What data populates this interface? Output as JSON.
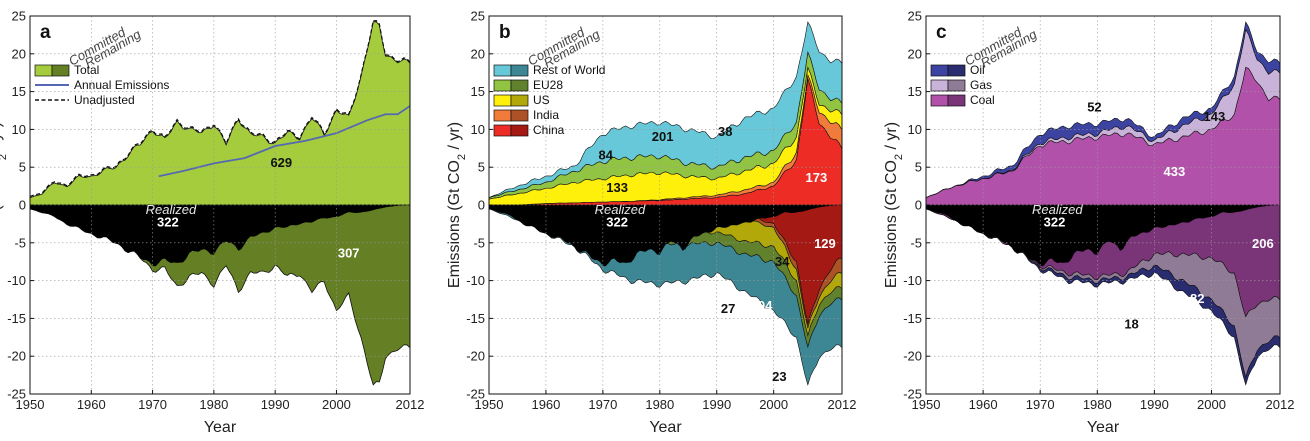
{
  "chart_data": {
    "type": "area",
    "shared": {
      "xlabel": "Year",
      "ylabel_text": "Emissions (Gt CO",
      "ylabel_sub": "2",
      "ylabel_suffix": " / yr)",
      "xlim": [
        1950,
        2012
      ],
      "ylim": [
        -25,
        25
      ],
      "xticks": [
        "1950",
        "1960",
        "1970",
        "1980",
        "1990",
        "2000",
        "2012"
      ],
      "yticks": [
        "25",
        "20",
        "15",
        "10",
        "5",
        "0",
        "-5",
        "-10",
        "-15",
        "-20",
        "-25"
      ],
      "committed_label": "Committed",
      "remaining_label": "Remaining",
      "realized_label": "Realized",
      "grid": true
    },
    "panels": [
      {
        "letter": "a",
        "legend": [
          {
            "name": "Total",
            "color_light": "#a4cc3c",
            "color_dark": "#647f24"
          },
          {
            "name": "Annual Emissions",
            "line": "#5668b3"
          },
          {
            "name": "Unadjusted",
            "dashed": "#111111"
          }
        ],
        "series": [
          {
            "name": "Total",
            "color": "#a4cc3c",
            "dark": "#647f24"
          }
        ],
        "committed_total": [
          [
            1950,
            1.0
          ],
          [
            1952,
            1.5
          ],
          [
            1954,
            3.0
          ],
          [
            1956,
            2.5
          ],
          [
            1958,
            3.7
          ],
          [
            1960,
            3.8
          ],
          [
            1962,
            4.5
          ],
          [
            1964,
            5.0
          ],
          [
            1966,
            6.7
          ],
          [
            1968,
            8.0
          ],
          [
            1970,
            10.0
          ],
          [
            1972,
            8.6
          ],
          [
            1974,
            11.0
          ],
          [
            1976,
            10.0
          ],
          [
            1978,
            9.5
          ],
          [
            1980,
            10.8
          ],
          [
            1982,
            8.0
          ],
          [
            1984,
            11.5
          ],
          [
            1986,
            9.3
          ],
          [
            1988,
            9.0
          ],
          [
            1990,
            8.2
          ],
          [
            1992,
            9.5
          ],
          [
            1994,
            9.0
          ],
          [
            1996,
            11.5
          ],
          [
            1998,
            9.4
          ],
          [
            2000,
            12.5
          ],
          [
            2002,
            11.5
          ],
          [
            2004,
            17.0
          ],
          [
            2006,
            24.0
          ],
          [
            2007,
            23.6
          ],
          [
            2008,
            20.0
          ],
          [
            2010,
            19.0
          ],
          [
            2012,
            18.8
          ]
        ],
        "annual_emissions": [
          [
            1971,
            3.8
          ],
          [
            1975,
            4.5
          ],
          [
            1980,
            5.5
          ],
          [
            1985,
            6.2
          ],
          [
            1990,
            7.8
          ],
          [
            1995,
            8.5
          ],
          [
            2000,
            9.5
          ],
          [
            2005,
            11.2
          ],
          [
            2008,
            12.0
          ],
          [
            2010,
            12.0
          ],
          [
            2012,
            13.1
          ]
        ],
        "remaining_total": [
          [
            1950,
            -0.5
          ],
          [
            1954,
            -1.5
          ],
          [
            1956,
            -2.5
          ],
          [
            1960,
            -3.8
          ],
          [
            1964,
            -5.0
          ],
          [
            1966,
            -6.0
          ],
          [
            1968,
            -7.0
          ],
          [
            1970,
            -8.5
          ],
          [
            1972,
            -8.5
          ],
          [
            1974,
            -10.8
          ],
          [
            1976,
            -9.5
          ],
          [
            1978,
            -9.0
          ],
          [
            1980,
            -10.5
          ],
          [
            1982,
            -8.0
          ],
          [
            1984,
            -11.3
          ],
          [
            1986,
            -9.0
          ],
          [
            1988,
            -9.0
          ],
          [
            1990,
            -8.0
          ],
          [
            1992,
            -9.5
          ],
          [
            1994,
            -9.0
          ],
          [
            1996,
            -11.5
          ],
          [
            1998,
            -10.0
          ],
          [
            2000,
            -14.0
          ],
          [
            2002,
            -12.0
          ],
          [
            2004,
            -17.5
          ],
          [
            2006,
            -24.0
          ],
          [
            2007,
            -23.6
          ],
          [
            2008,
            -20.0
          ],
          [
            2010,
            -19.0
          ],
          [
            2012,
            -18.8
          ]
        ],
        "realized_boundary": [
          [
            1950,
            -0.5
          ],
          [
            1954,
            -1.5
          ],
          [
            1956,
            -2.5
          ],
          [
            1960,
            -3.8
          ],
          [
            1964,
            -5.0
          ],
          [
            1966,
            -6.0
          ],
          [
            1968,
            -7.0
          ],
          [
            1970,
            -7.8
          ],
          [
            1972,
            -7.4
          ],
          [
            1974,
            -7.8
          ],
          [
            1976,
            -6.5
          ],
          [
            1978,
            -6.0
          ],
          [
            1980,
            -6.2
          ],
          [
            1982,
            -4.8
          ],
          [
            1984,
            -5.8
          ],
          [
            1986,
            -4.3
          ],
          [
            1988,
            -3.8
          ],
          [
            1990,
            -3.0
          ],
          [
            1992,
            -3.0
          ],
          [
            1994,
            -2.4
          ],
          [
            1996,
            -2.3
          ],
          [
            1998,
            -1.7
          ],
          [
            2000,
            -1.6
          ],
          [
            2002,
            -1.0
          ],
          [
            2004,
            -1.0
          ],
          [
            2006,
            -0.7
          ],
          [
            2008,
            -0.3
          ],
          [
            2010,
            -0.1
          ],
          [
            2012,
            0.0
          ]
        ],
        "labels": [
          {
            "text": "629",
            "x": 1991,
            "y": 5.7,
            "color": "#111111"
          },
          {
            "text": "322",
            "x": 1972.5,
            "y": -2.2,
            "color": "#ffffff"
          },
          {
            "text": "307",
            "x": 2002,
            "y": -6.3,
            "color": "#ffffff"
          }
        ]
      },
      {
        "letter": "b",
        "legend": [
          {
            "name": "Rest of World",
            "color_light": "#66c8d8",
            "color_dark": "#3d8794"
          },
          {
            "name": "EU28",
            "color_light": "#92c444",
            "color_dark": "#61812d"
          },
          {
            "name": "US",
            "color_light": "#fff00c",
            "color_dark": "#b3a80a"
          },
          {
            "name": "India",
            "color_light": "#f07b3a",
            "color_dark": "#ad5226"
          },
          {
            "name": "China",
            "color_light": "#ec2c25",
            "color_dark": "#a41914"
          }
        ],
        "series": [
          {
            "name": "China",
            "color": "#ec2c25",
            "dark": "#a41914"
          },
          {
            "name": "India",
            "color": "#f07b3a",
            "dark": "#ad5226"
          },
          {
            "name": "US",
            "color": "#fff00c",
            "dark": "#b3a80a"
          },
          {
            "name": "EU28",
            "color": "#92c444",
            "dark": "#61812d"
          },
          {
            "name": "Rest of World",
            "color": "#66c8d8",
            "dark": "#3d8794"
          }
        ],
        "committed_cumulative": {
          "x": [
            1950,
            1955,
            1960,
            1965,
            1970,
            1975,
            1980,
            1985,
            1990,
            1995,
            2000,
            2004,
            2006,
            2008,
            2010,
            2012
          ],
          "China": [
            0.0,
            0.0,
            0.2,
            0.3,
            0.4,
            0.5,
            0.6,
            0.8,
            1.0,
            1.5,
            2.5,
            6.0,
            16.5,
            11.0,
            9.0,
            7.5
          ],
          "India": [
            0.0,
            0.0,
            0.2,
            0.3,
            0.4,
            0.5,
            0.7,
            1.0,
            1.3,
            2.0,
            3.0,
            7.0,
            17.0,
            12.5,
            11.0,
            10.0
          ],
          "US": [
            0.8,
            1.5,
            2.2,
            3.0,
            3.5,
            4.0,
            4.3,
            3.8,
            3.5,
            4.5,
            5.5,
            9.0,
            18.0,
            13.5,
            12.5,
            12.0
          ],
          "EU28": [
            1.0,
            2.0,
            3.0,
            4.5,
            5.8,
            6.3,
            6.5,
            5.5,
            5.0,
            6.3,
            7.2,
            11.0,
            20.0,
            15.5,
            14.0,
            13.5
          ],
          "Rest of World": [
            1.0,
            2.5,
            3.8,
            5.2,
            9.5,
            10.5,
            11.0,
            10.0,
            9.0,
            11.5,
            12.8,
            17.0,
            24.0,
            20.5,
            19.0,
            18.8
          ]
        },
        "remaining_cumulative": {
          "x": [
            1950,
            1955,
            1960,
            1965,
            1970,
            1975,
            1980,
            1985,
            1990,
            1995,
            2000,
            2004,
            2006,
            2008,
            2010,
            2012
          ],
          "China": [
            0.0,
            0.0,
            -0.1,
            -0.2,
            -0.3,
            -0.4,
            -0.5,
            -0.6,
            -0.8,
            -1.3,
            -2.5,
            -7.5,
            -16.0,
            -11.0,
            -8.5,
            -7.0
          ],
          "India": [
            0.0,
            0.0,
            -0.1,
            -0.2,
            -0.3,
            -0.5,
            -0.6,
            -0.8,
            -1.1,
            -1.8,
            -3.0,
            -8.5,
            -16.5,
            -12.0,
            -10.0,
            -9.0
          ],
          "US": [
            -0.3,
            -0.8,
            -1.5,
            -2.2,
            -2.8,
            -3.2,
            -3.6,
            -3.6,
            -3.6,
            -4.8,
            -5.5,
            -10.0,
            -17.5,
            -13.0,
            -11.5,
            -11.0
          ],
          "EU28": [
            -0.4,
            -1.2,
            -2.2,
            -3.2,
            -4.2,
            -4.8,
            -5.3,
            -5.2,
            -5.0,
            -6.5,
            -7.5,
            -12.0,
            -19.0,
            -14.5,
            -13.0,
            -12.5
          ],
          "Rest of World": [
            -0.5,
            -2.0,
            -3.8,
            -5.5,
            -8.5,
            -10.0,
            -10.5,
            -10.0,
            -9.0,
            -11.5,
            -14.0,
            -17.5,
            -24.0,
            -20.0,
            -19.0,
            -18.8
          ]
        },
        "labels": [
          {
            "text": "38",
            "x": 1991.5,
            "y": 9.8,
            "color": "#111111"
          },
          {
            "text": "84",
            "x": 1970.5,
            "y": 6.7,
            "color": "#111111"
          },
          {
            "text": "201",
            "x": 1980.5,
            "y": 9.1,
            "color": "#111111"
          },
          {
            "text": "133",
            "x": 1972.5,
            "y": 2.4,
            "color": "#111111"
          },
          {
            "text": "173",
            "x": 2007.5,
            "y": 3.7,
            "color": "#ffffff"
          },
          {
            "text": "322",
            "x": 1972.5,
            "y": -2.2,
            "color": "#ffffff"
          },
          {
            "text": "129",
            "x": 2009,
            "y": -5.0,
            "color": "#ffffff"
          },
          {
            "text": "34",
            "x": 2001.5,
            "y": -7.4,
            "color": "#111111"
          },
          {
            "text": "27",
            "x": 1992,
            "y": -13.6,
            "color": "#111111"
          },
          {
            "text": "94",
            "x": 1998.5,
            "y": -13.2,
            "color": "#ffffff"
          },
          {
            "text": "23",
            "x": 2001,
            "y": -22.6,
            "color": "#111111"
          }
        ]
      },
      {
        "letter": "c",
        "legend": [
          {
            "name": "Oil",
            "color_light": "#3d43a1",
            "color_dark": "#292c6e"
          },
          {
            "name": "Gas",
            "color_light": "#c9b3d8",
            "color_dark": "#8f7b95"
          },
          {
            "name": "Coal",
            "color_light": "#b151a9",
            "color_dark": "#7a3478"
          }
        ],
        "series": [
          {
            "name": "Coal",
            "color": "#b151a9",
            "dark": "#7a3478"
          },
          {
            "name": "Gas",
            "color": "#c9b3d8",
            "dark": "#8f7b95"
          },
          {
            "name": "Oil",
            "color": "#3d43a1",
            "dark": "#292c6e"
          }
        ],
        "committed_cumulative": {
          "x": [
            1950,
            1955,
            1960,
            1965,
            1970,
            1975,
            1980,
            1985,
            1990,
            1995,
            2000,
            2004,
            2006,
            2008,
            2010,
            2012
          ],
          "Coal": [
            1.0,
            2.5,
            3.5,
            4.5,
            8.0,
            8.5,
            9.0,
            9.5,
            8.0,
            9.0,
            10.0,
            12.0,
            18.0,
            16.5,
            14.0,
            14.0
          ],
          "Gas": [
            1.0,
            2.5,
            3.5,
            4.6,
            8.3,
            9.0,
            9.5,
            10.5,
            8.5,
            10.5,
            12.0,
            16.0,
            23.0,
            19.5,
            17.5,
            17.5
          ],
          "Oil": [
            1.0,
            2.5,
            3.8,
            5.2,
            9.5,
            10.5,
            10.8,
            11.5,
            9.0,
            11.5,
            12.8,
            17.0,
            24.0,
            20.5,
            19.0,
            18.8
          ]
        },
        "remaining_cumulative": {
          "x": [
            1950,
            1955,
            1960,
            1965,
            1970,
            1975,
            1980,
            1985,
            1990,
            1995,
            2000,
            2004,
            2006,
            2008,
            2010,
            2012
          ],
          "Coal": [
            -0.5,
            -2.0,
            -3.8,
            -5.5,
            -8.0,
            -9.0,
            -9.5,
            -9.0,
            -6.5,
            -6.5,
            -7.0,
            -9.0,
            -15.0,
            -13.0,
            -12.5,
            -12.5
          ],
          "Gas": [
            -0.5,
            -2.0,
            -3.8,
            -5.5,
            -8.2,
            -9.5,
            -10.0,
            -9.5,
            -8.0,
            -10.0,
            -12.5,
            -16.0,
            -23.0,
            -19.0,
            -18.0,
            -17.5
          ],
          "Oil": [
            -0.5,
            -2.0,
            -3.8,
            -5.5,
            -8.5,
            -10.0,
            -10.5,
            -10.0,
            -9.0,
            -11.5,
            -14.0,
            -17.5,
            -24.0,
            -20.0,
            -19.0,
            -18.8
          ]
        },
        "labels": [
          {
            "text": "52",
            "x": 1979.5,
            "y": 13.0,
            "color": "#111111"
          },
          {
            "text": "143",
            "x": 2000.5,
            "y": 11.8,
            "color": "#111111"
          },
          {
            "text": "433",
            "x": 1993.5,
            "y": 4.5,
            "color": "#ffffff"
          },
          {
            "text": "322",
            "x": 1972.5,
            "y": -2.2,
            "color": "#ffffff"
          },
          {
            "text": "206",
            "x": 2009,
            "y": -5.0,
            "color": "#ffffff"
          },
          {
            "text": "82",
            "x": 1997.5,
            "y": -12.3,
            "color": "#ffffff"
          },
          {
            "text": "18",
            "x": 1986,
            "y": -15.7,
            "color": "#111111"
          }
        ]
      }
    ]
  }
}
